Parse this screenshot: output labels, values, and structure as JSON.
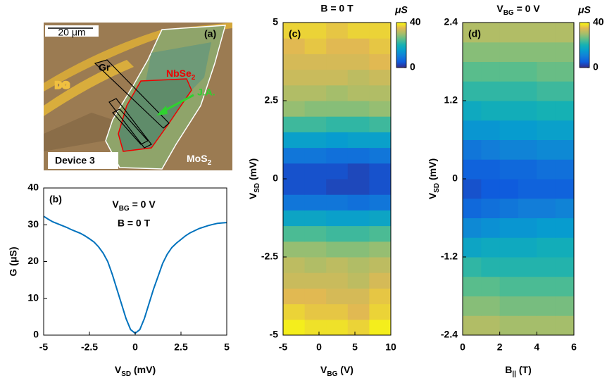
{
  "panel_a": {
    "label": "(a)",
    "scale_bar": "20 μm",
    "electrode_text": "DG",
    "gr": "Gr",
    "nbse": [
      "NbSe",
      "2"
    ],
    "ja": "J.A.",
    "device": "Device 3",
    "mos": [
      "MoS",
      "2"
    ]
  },
  "chart_data": [
    {
      "type": "line",
      "label": "(b)",
      "annotations": [
        [
          "V",
          "BG",
          " = 0 V"
        ],
        "B = 0 T"
      ],
      "x_label": [
        "V",
        "SD",
        " (mV)"
      ],
      "y_label": "G (μS)",
      "color": "#0072bd",
      "x": [
        -5,
        -4.75,
        -4.5,
        -4.25,
        -4,
        -3.75,
        -3.5,
        -3.25,
        -3,
        -2.75,
        -2.5,
        -2.25,
        -2,
        -1.75,
        -1.5,
        -1.25,
        -1,
        -0.75,
        -0.5,
        -0.25,
        0,
        0.25,
        0.5,
        0.75,
        1,
        1.25,
        1.5,
        1.75,
        2,
        2.25,
        2.5,
        2.75,
        3,
        3.25,
        3.5,
        3.75,
        4,
        4.25,
        4.5,
        4.75,
        5
      ],
      "values": [
        32.3,
        31.5,
        30.8,
        30.3,
        29.8,
        29.3,
        28.7,
        28.2,
        27.7,
        27,
        26.2,
        25.3,
        24,
        22.3,
        20,
        16.5,
        12.5,
        8.5,
        4.5,
        1.5,
        0.5,
        1.5,
        4.5,
        8.5,
        12.5,
        16,
        19.5,
        22,
        23.8,
        25,
        26,
        27,
        27.8,
        28.4,
        29,
        29.4,
        29.8,
        30.1,
        30.4,
        30.5,
        30.6
      ],
      "xlim": [
        -5,
        5
      ],
      "ylim": [
        0,
        40
      ],
      "xticks": [
        -5,
        -2.5,
        0,
        2.5,
        5
      ],
      "yticks": [
        0,
        10,
        20,
        30,
        40
      ]
    },
    {
      "type": "heatmap",
      "title": "B = 0 T",
      "label": "(c)",
      "x_label": [
        "V",
        "BG",
        " (V)"
      ],
      "y_label": [
        "V",
        "SD",
        " (mV)"
      ],
      "colormap": "parula",
      "colorbar_label": "μS",
      "x": [
        -3.5,
        -0.5,
        2.5,
        5.5,
        8.5
      ],
      "y": [
        -4.75,
        -4.25,
        -3.75,
        -3.25,
        -2.75,
        -2.25,
        -1.75,
        -1.25,
        -0.75,
        -0.25,
        0.25,
        0.75,
        1.25,
        1.75,
        2.25,
        2.75,
        3.25,
        3.75,
        4.25,
        4.75
      ],
      "z": [
        [
          39,
          38,
          38,
          37,
          39
        ],
        [
          37,
          36,
          36,
          35,
          37
        ],
        [
          35,
          35,
          34,
          34,
          36
        ],
        [
          33,
          33,
          33,
          32,
          34
        ],
        [
          32,
          31,
          32,
          31,
          32
        ],
        [
          29,
          29,
          28,
          28,
          29
        ],
        [
          24,
          24,
          23,
          23,
          24
        ],
        [
          17,
          17,
          16,
          16,
          17
        ],
        [
          9,
          9,
          9,
          8,
          9
        ],
        [
          4,
          4,
          3,
          3,
          4
        ],
        [
          4,
          4,
          4,
          3,
          4
        ],
        [
          9,
          9,
          8,
          8,
          9
        ],
        [
          16,
          16,
          15,
          16,
          16
        ],
        [
          23,
          23,
          22,
          22,
          23
        ],
        [
          29,
          28,
          28,
          28,
          29
        ],
        [
          31,
          31,
          30,
          31,
          31
        ],
        [
          33,
          33,
          33,
          32,
          33
        ],
        [
          34,
          34,
          34,
          34,
          35
        ],
        [
          35,
          36,
          35,
          35,
          36
        ],
        [
          37,
          37,
          36,
          37,
          37
        ]
      ],
      "xlim": [
        -5,
        10
      ],
      "ylim": [
        -5,
        5
      ],
      "xticks": [
        -5,
        0,
        5,
        10
      ],
      "yticks": [
        -5,
        -2.5,
        0,
        2.5,
        5
      ],
      "clim": [
        0,
        40
      ],
      "cticks": [
        0,
        40
      ]
    },
    {
      "type": "heatmap",
      "title": [
        "V",
        "BG",
        " = 0 V"
      ],
      "label": "(d)",
      "x_label": [
        "B",
        "||",
        " (T)"
      ],
      "y_label": [
        "V",
        "SD",
        " (mV)"
      ],
      "colormap": "parula",
      "colorbar_label": "μS",
      "x": [
        0.5,
        1.5,
        2.5,
        3.5,
        4.5,
        5.5
      ],
      "y": [
        -2.25,
        -1.95,
        -1.65,
        -1.35,
        -1.05,
        -0.75,
        -0.45,
        -0.15,
        0.15,
        0.45,
        0.75,
        1.05,
        1.35,
        1.65,
        1.95,
        2.25
      ],
      "z": [
        [
          31,
          31,
          30,
          30,
          30,
          30
        ],
        [
          28,
          28,
          27,
          27,
          27,
          27
        ],
        [
          25,
          25,
          24,
          24,
          24,
          24
        ],
        [
          22,
          21,
          21,
          21,
          21,
          21
        ],
        [
          17,
          18,
          18,
          18,
          19,
          19
        ],
        [
          12,
          13,
          14,
          14,
          15,
          15
        ],
        [
          7,
          8,
          9,
          10,
          10,
          11
        ],
        [
          4,
          5,
          5,
          6,
          6,
          6
        ],
        [
          6,
          6,
          7,
          7,
          8,
          8
        ],
        [
          9,
          10,
          11,
          11,
          12,
          12
        ],
        [
          14,
          14,
          15,
          15,
          16,
          16
        ],
        [
          18,
          19,
          19,
          19,
          20,
          20
        ],
        [
          22,
          22,
          22,
          22,
          23,
          23
        ],
        [
          25,
          25,
          25,
          25,
          26,
          26
        ],
        [
          28,
          28,
          28,
          28,
          28,
          28
        ],
        [
          31,
          31,
          31,
          31,
          31,
          31
        ]
      ],
      "xlim": [
        0,
        6
      ],
      "ylim": [
        -2.4,
        2.4
      ],
      "xticks": [
        0,
        2,
        4,
        6
      ],
      "yticks": [
        -2.4,
        -1.2,
        0,
        1.2,
        2.4
      ],
      "clim": [
        0,
        40
      ],
      "cticks": [
        0,
        40
      ]
    }
  ]
}
